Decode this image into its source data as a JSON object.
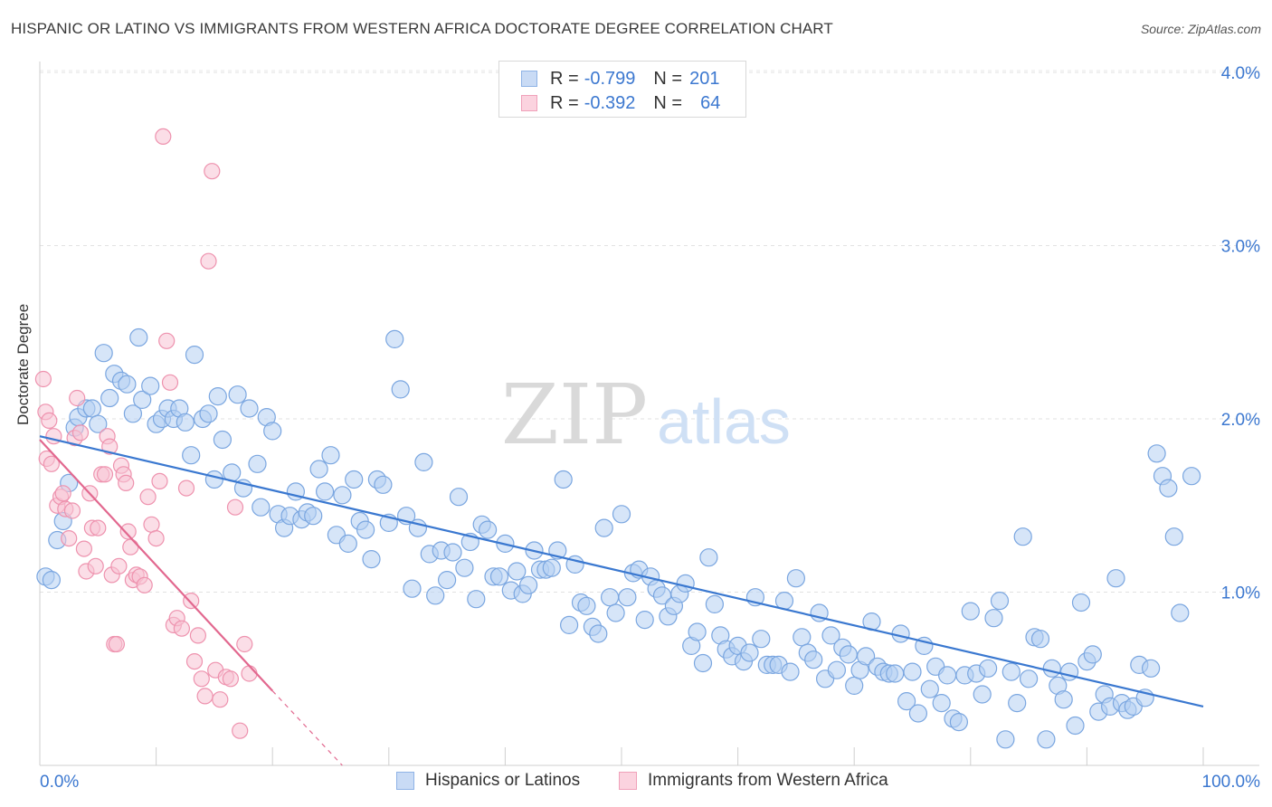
{
  "title": "HISPANIC OR LATINO VS IMMIGRANTS FROM WESTERN AFRICA DOCTORATE DEGREE CORRELATION CHART",
  "source": "Source: ZipAtlas.com",
  "watermark": {
    "zip": "ZIP",
    "atlas": "atlas"
  },
  "legend": {
    "rows": [
      {
        "r_label": "R =",
        "r_value": "-0.799",
        "n_label": "N =",
        "n_value": "201",
        "color": "#a9c6ef"
      },
      {
        "r_label": "R =",
        "r_value": "-0.392",
        "n_label": "N =",
        "n_value": "64",
        "color": "#f5b8cb"
      }
    ]
  },
  "chart_data": {
    "type": "scatter",
    "title": "HISPANIC OR LATINO VS IMMIGRANTS FROM WESTERN AFRICA DOCTORATE DEGREE CORRELATION CHART",
    "xlabel": "",
    "ylabel": "Doctorate Degree",
    "xlim": [
      0,
      100
    ],
    "ylim": [
      0,
      4.2
    ],
    "x_tick_labels": [
      "0.0%",
      "100.0%"
    ],
    "y_ticks": [
      1.0,
      2.0,
      3.0,
      4.0
    ],
    "y_tick_labels": [
      "1.0%",
      "2.0%",
      "3.0%",
      "4.0%"
    ],
    "grid": true,
    "series": [
      {
        "name": "Hispanics or Latinos",
        "color": "#7aa6e0",
        "fill": "#b5cff2",
        "trend": {
          "x": [
            0,
            100
          ],
          "y": [
            1.9,
            0.34
          ],
          "color": "#3a78d0"
        },
        "points": [
          [
            0.5,
            1.09
          ],
          [
            1,
            1.07
          ],
          [
            1.5,
            1.3
          ],
          [
            2,
            1.41
          ],
          [
            2.5,
            1.63
          ],
          [
            3,
            1.95
          ],
          [
            3.3,
            2.01
          ],
          [
            4,
            2.06
          ],
          [
            4.5,
            2.06
          ],
          [
            5,
            1.97
          ],
          [
            5.5,
            2.38
          ],
          [
            6,
            2.12
          ],
          [
            6.4,
            2.26
          ],
          [
            7,
            2.22
          ],
          [
            7.5,
            2.2
          ],
          [
            8,
            2.03
          ],
          [
            8.5,
            2.47
          ],
          [
            8.8,
            2.11
          ],
          [
            9.5,
            2.19
          ],
          [
            10,
            1.97
          ],
          [
            10.5,
            2.0
          ],
          [
            11,
            2.06
          ],
          [
            11.5,
            2.0
          ],
          [
            12,
            2.06
          ],
          [
            12.5,
            1.98
          ],
          [
            13,
            1.79
          ],
          [
            13.3,
            2.37
          ],
          [
            14,
            2.0
          ],
          [
            14.5,
            2.03
          ],
          [
            15,
            1.65
          ],
          [
            15.3,
            2.13
          ],
          [
            15.7,
            1.88
          ],
          [
            16.5,
            1.69
          ],
          [
            17,
            2.14
          ],
          [
            17.5,
            1.6
          ],
          [
            18,
            2.06
          ],
          [
            18.7,
            1.74
          ],
          [
            19,
            1.49
          ],
          [
            19.5,
            2.01
          ],
          [
            20,
            1.93
          ],
          [
            20.5,
            1.45
          ],
          [
            21,
            1.37
          ],
          [
            21.5,
            1.44
          ],
          [
            22,
            1.58
          ],
          [
            22.5,
            1.42
          ],
          [
            23,
            1.46
          ],
          [
            23.5,
            1.44
          ],
          [
            24,
            1.71
          ],
          [
            24.5,
            1.58
          ],
          [
            25,
            1.79
          ],
          [
            25.5,
            1.33
          ],
          [
            26,
            1.56
          ],
          [
            26.5,
            1.28
          ],
          [
            27,
            1.65
          ],
          [
            27.5,
            1.41
          ],
          [
            28,
            1.36
          ],
          [
            28.5,
            1.19
          ],
          [
            29,
            1.65
          ],
          [
            29.5,
            1.62
          ],
          [
            30,
            1.4
          ],
          [
            30.5,
            2.46
          ],
          [
            31,
            2.17
          ],
          [
            31.5,
            1.44
          ],
          [
            32,
            1.02
          ],
          [
            32.5,
            1.37
          ],
          [
            33,
            1.75
          ],
          [
            33.5,
            1.22
          ],
          [
            34,
            0.98
          ],
          [
            34.5,
            1.24
          ],
          [
            35,
            1.07
          ],
          [
            35.5,
            1.23
          ],
          [
            36,
            1.55
          ],
          [
            36.5,
            1.14
          ],
          [
            37,
            1.29
          ],
          [
            37.5,
            0.96
          ],
          [
            38,
            1.39
          ],
          [
            38.5,
            1.36
          ],
          [
            39,
            1.09
          ],
          [
            39.5,
            1.09
          ],
          [
            40,
            1.28
          ],
          [
            40.5,
            1.01
          ],
          [
            41,
            1.12
          ],
          [
            41.5,
            0.99
          ],
          [
            42,
            1.04
          ],
          [
            42.5,
            1.24
          ],
          [
            43,
            1.13
          ],
          [
            43.5,
            1.13
          ],
          [
            44,
            1.14
          ],
          [
            44.5,
            1.24
          ],
          [
            45,
            1.65
          ],
          [
            45.5,
            0.81
          ],
          [
            46,
            1.16
          ],
          [
            46.5,
            0.94
          ],
          [
            47,
            0.92
          ],
          [
            47.5,
            0.8
          ],
          [
            48,
            0.76
          ],
          [
            48.5,
            1.37
          ],
          [
            49,
            0.97
          ],
          [
            49.5,
            0.88
          ],
          [
            50,
            1.45
          ],
          [
            50.5,
            0.97
          ],
          [
            51,
            1.11
          ],
          [
            51.5,
            1.13
          ],
          [
            52,
            0.84
          ],
          [
            52.5,
            1.09
          ],
          [
            53,
            1.02
          ],
          [
            53.5,
            0.98
          ],
          [
            54,
            0.86
          ],
          [
            54.5,
            0.92
          ],
          [
            55,
            0.99
          ],
          [
            55.5,
            1.05
          ],
          [
            56,
            0.69
          ],
          [
            56.5,
            0.77
          ],
          [
            57,
            0.59
          ],
          [
            57.5,
            1.2
          ],
          [
            58,
            0.93
          ],
          [
            58.5,
            0.75
          ],
          [
            59,
            0.67
          ],
          [
            59.5,
            0.63
          ],
          [
            60,
            0.69
          ],
          [
            60.5,
            0.6
          ],
          [
            61,
            0.65
          ],
          [
            61.5,
            0.97
          ],
          [
            62,
            0.73
          ],
          [
            62.5,
            0.58
          ],
          [
            63,
            0.58
          ],
          [
            63.5,
            0.58
          ],
          [
            64,
            0.95
          ],
          [
            64.5,
            0.54
          ],
          [
            65,
            1.08
          ],
          [
            65.5,
            0.74
          ],
          [
            66,
            0.65
          ],
          [
            66.5,
            0.61
          ],
          [
            67,
            0.88
          ],
          [
            67.5,
            0.5
          ],
          [
            68,
            0.75
          ],
          [
            68.5,
            0.55
          ],
          [
            69,
            0.68
          ],
          [
            69.5,
            0.64
          ],
          [
            70,
            0.46
          ],
          [
            70.5,
            0.55
          ],
          [
            71,
            0.63
          ],
          [
            71.5,
            0.83
          ],
          [
            72,
            0.57
          ],
          [
            72.5,
            0.54
          ],
          [
            73,
            0.53
          ],
          [
            73.5,
            0.53
          ],
          [
            74,
            0.76
          ],
          [
            74.5,
            0.37
          ],
          [
            75,
            0.54
          ],
          [
            75.5,
            0.3
          ],
          [
            76,
            0.69
          ],
          [
            76.5,
            0.44
          ],
          [
            77,
            0.57
          ],
          [
            77.5,
            0.36
          ],
          [
            78,
            0.52
          ],
          [
            78.5,
            0.27
          ],
          [
            79,
            0.25
          ],
          [
            79.5,
            0.52
          ],
          [
            80,
            0.89
          ],
          [
            80.5,
            0.53
          ],
          [
            81,
            0.41
          ],
          [
            81.5,
            0.56
          ],
          [
            82,
            0.85
          ],
          [
            82.5,
            0.95
          ],
          [
            83,
            0.15
          ],
          [
            83.5,
            0.54
          ],
          [
            84,
            0.36
          ],
          [
            84.5,
            1.32
          ],
          [
            85,
            0.5
          ],
          [
            85.5,
            0.74
          ],
          [
            86,
            0.73
          ],
          [
            86.5,
            0.15
          ],
          [
            87,
            0.56
          ],
          [
            87.5,
            0.46
          ],
          [
            88,
            0.38
          ],
          [
            88.5,
            0.54
          ],
          [
            89,
            0.23
          ],
          [
            89.5,
            0.94
          ],
          [
            90,
            0.6
          ],
          [
            90.5,
            0.64
          ],
          [
            91,
            0.31
          ],
          [
            91.5,
            0.41
          ],
          [
            92,
            0.34
          ],
          [
            92.5,
            1.08
          ],
          [
            93,
            0.36
          ],
          [
            93.5,
            0.32
          ],
          [
            94,
            0.34
          ],
          [
            94.5,
            0.58
          ],
          [
            95,
            0.39
          ],
          [
            95.5,
            0.56
          ],
          [
            96,
            1.8
          ],
          [
            96.5,
            1.67
          ],
          [
            97,
            1.6
          ],
          [
            97.5,
            1.32
          ],
          [
            98,
            0.88
          ],
          [
            99,
            1.67
          ]
        ]
      },
      {
        "name": "Immigrants from Western Africa",
        "color": "#ee92ae",
        "fill": "#f7c3d3",
        "trend": {
          "x": [
            0,
            20
          ],
          "y": [
            1.88,
            0.43
          ],
          "dashed_to": [
            26,
            0.0
          ],
          "color": "#e2688f"
        },
        "points": [
          [
            0.3,
            2.23
          ],
          [
            0.5,
            2.04
          ],
          [
            0.6,
            1.77
          ],
          [
            0.8,
            1.99
          ],
          [
            1,
            1.74
          ],
          [
            1.2,
            1.9
          ],
          [
            1.5,
            1.5
          ],
          [
            1.8,
            1.55
          ],
          [
            2,
            1.57
          ],
          [
            2.2,
            1.48
          ],
          [
            2.5,
            1.31
          ],
          [
            2.8,
            1.47
          ],
          [
            3,
            1.89
          ],
          [
            3.2,
            2.12
          ],
          [
            3.5,
            1.92
          ],
          [
            3.8,
            1.25
          ],
          [
            4,
            1.12
          ],
          [
            4.3,
            1.57
          ],
          [
            4.5,
            1.37
          ],
          [
            4.8,
            1.15
          ],
          [
            5,
            1.37
          ],
          [
            5.3,
            1.68
          ],
          [
            5.6,
            1.68
          ],
          [
            5.8,
            1.9
          ],
          [
            6,
            1.84
          ],
          [
            6.2,
            1.1
          ],
          [
            6.4,
            0.7
          ],
          [
            6.6,
            0.7
          ],
          [
            6.8,
            1.15
          ],
          [
            7,
            1.73
          ],
          [
            7.2,
            1.68
          ],
          [
            7.4,
            1.63
          ],
          [
            7.6,
            1.35
          ],
          [
            7.8,
            1.26
          ],
          [
            8,
            1.07
          ],
          [
            8.3,
            1.1
          ],
          [
            8.6,
            1.09
          ],
          [
            9,
            1.04
          ],
          [
            9.3,
            1.55
          ],
          [
            9.6,
            1.39
          ],
          [
            10,
            1.31
          ],
          [
            10.3,
            1.64
          ],
          [
            10.6,
            3.63
          ],
          [
            10.9,
            2.45
          ],
          [
            11.2,
            2.21
          ],
          [
            11.5,
            0.81
          ],
          [
            11.8,
            0.85
          ],
          [
            12.2,
            0.79
          ],
          [
            12.6,
            1.6
          ],
          [
            13,
            0.95
          ],
          [
            13.3,
            0.6
          ],
          [
            13.6,
            0.75
          ],
          [
            13.9,
            0.5
          ],
          [
            14.2,
            0.4
          ],
          [
            14.5,
            2.91
          ],
          [
            14.8,
            3.43
          ],
          [
            15.1,
            0.55
          ],
          [
            15.5,
            0.38
          ],
          [
            16,
            0.51
          ],
          [
            16.4,
            0.5
          ],
          [
            16.8,
            1.49
          ],
          [
            17.2,
            0.2
          ],
          [
            17.6,
            0.7
          ],
          [
            18,
            0.53
          ]
        ]
      }
    ]
  },
  "bottom_legend": {
    "items": [
      {
        "label": "Hispanics or Latinos",
        "color": "#a9c6ef"
      },
      {
        "label": "Immigrants from Western Africa",
        "color": "#f5b8cb"
      }
    ]
  }
}
